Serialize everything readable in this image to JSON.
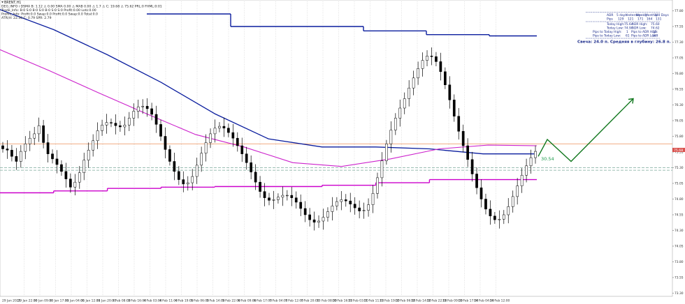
{
  "window": {
    "symbol_label": "BRENT,H1",
    "info_lines": [
      "DEG_INFO i DSMA B: 1.12 ⚠ 0.00 SMA 0.00 ⚠ MAB 0.00 ⚠ 1.7 ⚠ C: 19.68 ⚠ 75.62 PRL:0 FHML:0:01",
      "Trade_Info: B:0 S:0 B:0 S:0 B:0 S:0 S:0 Profit:0.00 Lots:0.00",
      "Profile_Info: Profit:0.0 Swap:0.0 Profit:0.0 Swap:0.0 Total:0.0",
      "ATR(H: 22.56 C: 0.79 SPR: 2.79"
    ]
  },
  "stats_panel": {
    "header": [
      "ADR",
      "5 days",
      "Yesterday",
      "Weekly",
      "Monthly",
      "180 Days"
    ],
    "pips_row": [
      "Pips",
      "129",
      "121",
      "171",
      "164",
      "131"
    ],
    "rows": [
      [
        "Today High:",
        "75.64",
        "ADR High:",
        "75.60"
      ],
      [
        "Today Low:",
        "74.90",
        "ADR Low:",
        "74.62"
      ],
      [
        "Pips to Today High:",
        "1",
        "Pips to ADR High:",
        "12"
      ],
      [
        "Pips to Today Low:",
        "61",
        "Pips to ADR Low:",
        "109"
      ]
    ],
    "candle_summary": "Свеча: 24.0 п. Средняя в глубину: 26.8 п."
  },
  "price_tag_label": "30.54",
  "colors": {
    "candle": "#000000",
    "ma_slow": "#0a1d9e",
    "ma_fast": "#cc22cc",
    "band": "#cc00cc",
    "top_level": "#0a1d9e",
    "current_price": "#f0a070",
    "dashed_level": "#7aa99a",
    "forecast": "#12781f",
    "price_tag_text": "#1a9a4a",
    "price_box": "#d9534f",
    "grid": "#c4c4c4",
    "stats_text": "#1a2a8a"
  },
  "chart_data": {
    "type": "candlestick",
    "title": "",
    "symbol": "BRENT",
    "timeframe": "H1",
    "grid": true,
    "grid_style": "vertical dotted",
    "x_tick_labels": [
      "29 Jan 2025",
      "29 Jan 22:00",
      "30 Jan 09:00",
      "30 Jan 17:00",
      "31 Jan 04:00",
      "31 Jan 12:00",
      "31 Jan 20:00",
      "3 Feb 08:00",
      "3 Feb 16:00",
      "4 Feb 03:00",
      "4 Feb 11:00",
      "4 Feb 19:00",
      "5 Feb 06:00",
      "5 Feb 14:00",
      "5 Feb 22:00",
      "6 Feb 09:00",
      "6 Feb 17:00",
      "7 Feb 04:00",
      "7 Feb 12:00",
      "7 Feb 20:00",
      "10 Feb 08:00",
      "10 Feb 16:00",
      "11 Feb 03:00",
      "11 Feb 11:00",
      "11 Feb 19:00",
      "12 Feb 06:00",
      "12 Feb 14:00",
      "12 Feb 22:00",
      "13 Feb 09:00",
      "13 Feb 17:00",
      "14 Feb 04:00",
      "14 Feb 12:00"
    ],
    "y_tick_labels": [
      "77.80",
      "77.55",
      "77.30",
      "77.05",
      "76.80",
      "76.55",
      "76.30",
      "76.05",
      "75.80",
      "75.55",
      "75.30",
      "75.05",
      "74.80",
      "74.55",
      "74.30",
      "74.05",
      "73.80",
      "73.55",
      "73.30"
    ],
    "ylim": [
      73.25,
      77.95
    ],
    "current_price": 75.68,
    "current_price_label": "75.68",
    "dashed_levels": [
      75.3,
      75.26
    ],
    "top_level_values": [
      77.75,
      77.55,
      77.48,
      77.42,
      77.4
    ],
    "band_values": [
      74.9,
      74.93,
      74.97,
      74.99,
      75.0,
      75.0,
      75.02,
      75.06,
      75.11,
      75.11
    ],
    "ma_slow_values": [
      77.82,
      77.5,
      77.1,
      76.66,
      76.16,
      75.76,
      75.63,
      75.63,
      75.6,
      75.52,
      75.52
    ],
    "ma_fast_values": [
      77.18,
      76.85,
      76.5,
      76.16,
      75.83,
      75.63,
      75.38,
      75.32,
      75.44,
      75.6,
      75.66,
      75.65
    ],
    "forecast_values": [
      75.48,
      75.75,
      75.4,
      76.4
    ],
    "close_values": [
      75.6,
      75.58,
      75.48,
      75.4,
      75.56,
      75.68,
      75.77,
      75.84,
      75.97,
      75.7,
      75.52,
      75.44,
      75.35,
      75.24,
      75.12,
      74.99,
      75.07,
      75.22,
      75.42,
      75.58,
      75.73,
      75.89,
      75.98,
      76.02,
      76.01,
      75.97,
      75.95,
      75.98,
      76.09,
      76.2,
      76.27,
      76.28,
      76.24,
      76.15,
      75.99,
      75.8,
      75.59,
      75.4,
      75.24,
      75.11,
      75.04,
      75.06,
      75.16,
      75.34,
      75.53,
      75.7,
      75.84,
      75.93,
      75.96,
      75.93,
      75.86,
      75.77,
      75.65,
      75.52,
      75.38,
      75.23,
      75.07,
      74.92,
      74.82,
      74.78,
      74.79,
      74.83,
      74.86,
      74.86,
      74.82,
      74.75,
      74.65,
      74.55,
      74.47,
      74.43,
      74.45,
      74.51,
      74.6,
      74.69,
      74.76,
      74.79,
      74.77,
      74.72,
      74.66,
      74.61,
      74.62,
      74.71,
      74.89,
      75.14,
      75.41,
      75.68,
      75.9,
      76.09,
      76.25,
      76.4,
      76.57,
      76.73,
      76.88,
      77.01,
      77.08,
      77.07,
      76.99,
      76.83,
      76.62,
      76.38,
      76.12,
      75.88,
      75.65,
      75.43,
      75.2,
      74.98,
      74.8,
      74.64,
      74.53,
      74.47,
      74.48,
      74.55,
      74.68,
      74.84,
      75.01,
      75.18,
      75.33,
      75.46,
      75.56
    ]
  }
}
